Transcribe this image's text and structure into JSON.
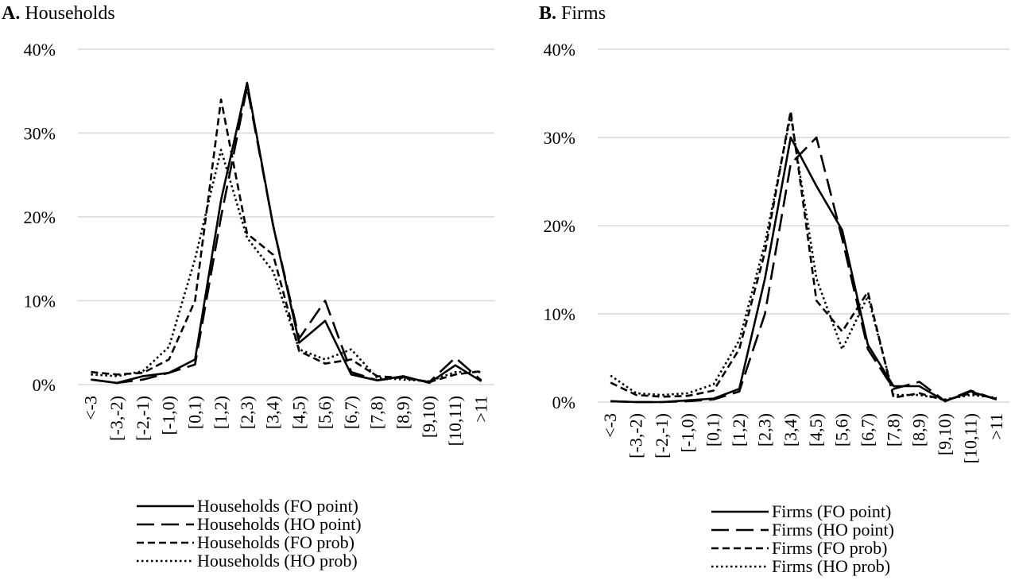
{
  "colors": {
    "series": "#000000",
    "grid": "#d9d9d9"
  },
  "categories": [
    "<-3",
    "[-3,-2)",
    "[-2,-1)",
    "[-1,0)",
    "[0,1)",
    "[1,2)",
    "[2,3)",
    "[3,4)",
    "[4,5)",
    "[5,6)",
    "[6,7)",
    "[7,8)",
    "[8,9)",
    "[9,10)",
    "[10,11)",
    ">11"
  ],
  "chart_data": [
    {
      "type": "line",
      "panel_label": "A.",
      "title": "Households",
      "xlabel": "",
      "ylabel": "",
      "ylim": [
        0,
        0.4
      ],
      "yticks": [
        0,
        0.1,
        0.2,
        0.3,
        0.4
      ],
      "yticklabels": [
        "0%",
        "10%",
        "20%",
        "30%",
        "40%"
      ],
      "grid": true,
      "legend_position": "bottom",
      "series": [
        {
          "name": "Households (FO point)",
          "style": "solid",
          "values": [
            0.006,
            0.002,
            0.01,
            0.014,
            0.03,
            0.22,
            0.36,
            0.19,
            0.05,
            0.076,
            0.012,
            0.005,
            0.01,
            0.002,
            0.023,
            0.004
          ]
        },
        {
          "name": "Households (HO point)",
          "style": "longdash",
          "values": [
            0.006,
            0.002,
            0.006,
            0.014,
            0.024,
            0.2,
            0.355,
            0.19,
            0.055,
            0.1,
            0.015,
            0.005,
            0.009,
            0.003,
            0.032,
            0.005
          ]
        },
        {
          "name": "Households (FO prob)",
          "style": "shortdash",
          "values": [
            0.015,
            0.012,
            0.014,
            0.03,
            0.1,
            0.34,
            0.18,
            0.155,
            0.04,
            0.025,
            0.03,
            0.01,
            0.008,
            0.003,
            0.012,
            0.016
          ]
        },
        {
          "name": "Households (HO prob)",
          "style": "dotted",
          "values": [
            0.012,
            0.01,
            0.016,
            0.045,
            0.15,
            0.28,
            0.175,
            0.135,
            0.042,
            0.03,
            0.042,
            0.008,
            0.006,
            0.004,
            0.015,
            0.015
          ]
        }
      ]
    },
    {
      "type": "line",
      "panel_label": "B.",
      "title": "Firms",
      "xlabel": "",
      "ylabel": "",
      "ylim": [
        0,
        0.4
      ],
      "yticks": [
        0,
        0.1,
        0.2,
        0.3,
        0.4
      ],
      "yticklabels": [
        "0%",
        "10%",
        "20%",
        "30%",
        "40%"
      ],
      "grid": true,
      "legend_position": "bottom",
      "series": [
        {
          "name": "Firms (FO point)",
          "style": "solid",
          "values": [
            0.001,
            0.0,
            0.0,
            0.002,
            0.004,
            0.015,
            0.14,
            0.3,
            0.245,
            0.195,
            0.065,
            0.018,
            0.018,
            0.001,
            0.012,
            0.003
          ]
        },
        {
          "name": "Firms (HO point)",
          "style": "longdash",
          "values": [
            0.001,
            0.0,
            0.0,
            0.001,
            0.003,
            0.012,
            0.1,
            0.27,
            0.3,
            0.185,
            0.06,
            0.015,
            0.023,
            0.001,
            0.013,
            0.003
          ]
        },
        {
          "name": "Firms (FO prob)",
          "style": "shortdash",
          "values": [
            0.022,
            0.008,
            0.006,
            0.007,
            0.013,
            0.06,
            0.17,
            0.33,
            0.115,
            0.08,
            0.125,
            0.005,
            0.01,
            0.002,
            0.01,
            0.004
          ]
        },
        {
          "name": "Firms (HO prob)",
          "style": "dotted",
          "values": [
            0.03,
            0.01,
            0.008,
            0.01,
            0.02,
            0.07,
            0.18,
            0.325,
            0.14,
            0.06,
            0.12,
            0.008,
            0.008,
            0.003,
            0.008,
            0.005
          ]
        }
      ]
    }
  ]
}
